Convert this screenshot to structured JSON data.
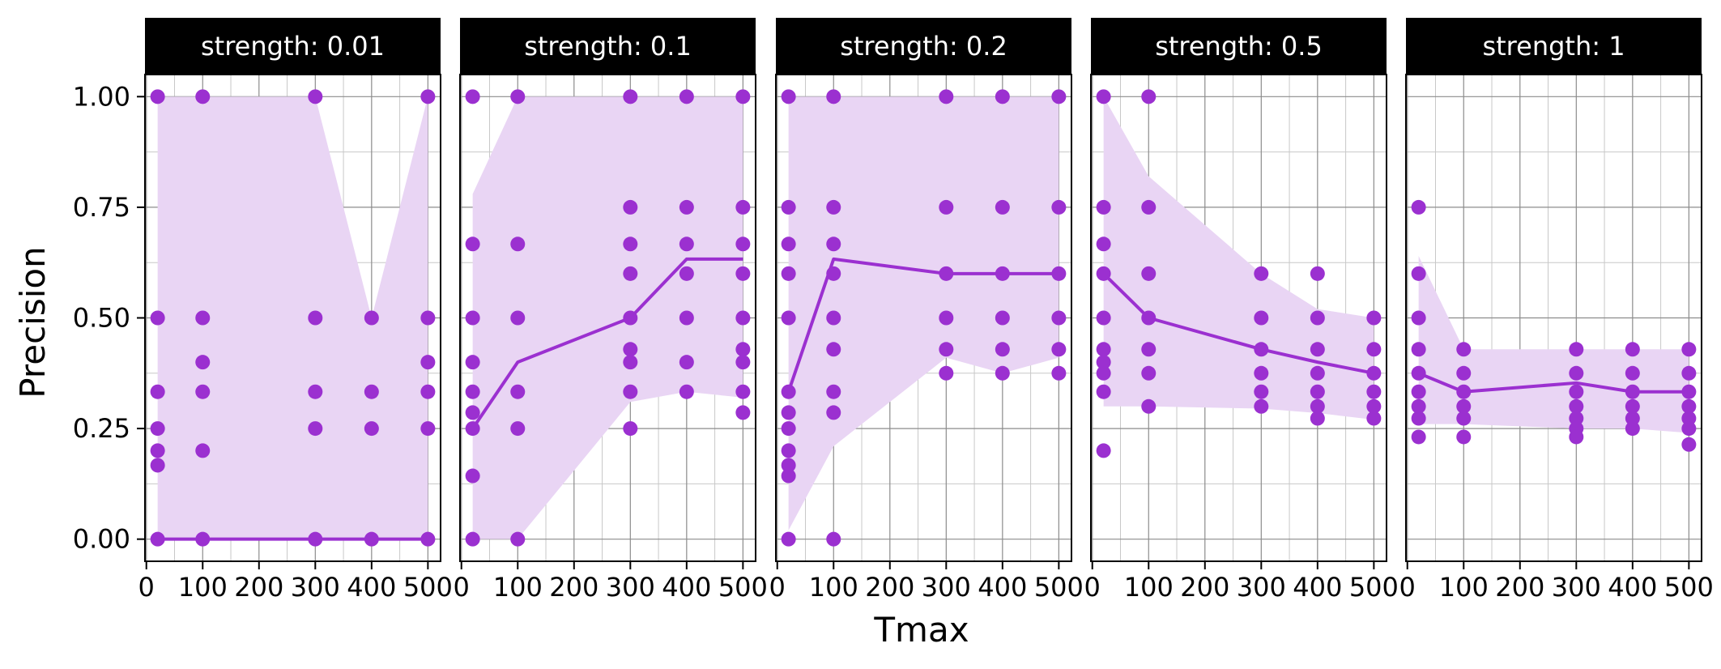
{
  "chart_data": {
    "type": "scatter",
    "xlabel": "Tmax",
    "ylabel": "Precision",
    "xlim": [
      -2.5,
      522.5
    ],
    "ylim": [
      -0.05,
      1.05
    ],
    "x_ticks": [
      0,
      100,
      200,
      300,
      400,
      500
    ],
    "x_tick_labels": [
      "0",
      "100",
      "200",
      "300",
      "400",
      "500"
    ],
    "y_ticks": [
      0,
      0.25,
      0.5,
      0.75,
      1
    ],
    "y_tick_labels": [
      "0.00",
      "0.25",
      "0.50",
      "0.75",
      "1.00"
    ],
    "grid": true,
    "colors": {
      "points": "#9b30d0",
      "line": "#9b30d0",
      "ribbon": "#e9d5f4",
      "strip_bg": "#000000",
      "strip_text": "#ffffff",
      "grid_major": "#8c8c8c",
      "grid_minor": "#c8c8c8"
    },
    "panels": [
      {
        "strip": "strength: 0.01",
        "points": [
          [
            20,
            1
          ],
          [
            20,
            0.5
          ],
          [
            20,
            0.333
          ],
          [
            20,
            0.25
          ],
          [
            20,
            0.2
          ],
          [
            20,
            0.167
          ],
          [
            20,
            0
          ],
          [
            100,
            1
          ],
          [
            100,
            0.5
          ],
          [
            100,
            0.4
          ],
          [
            100,
            0.333
          ],
          [
            100,
            0.2
          ],
          [
            100,
            0
          ],
          [
            300,
            1
          ],
          [
            300,
            0.5
          ],
          [
            300,
            0.333
          ],
          [
            300,
            0.25
          ],
          [
            300,
            0
          ],
          [
            400,
            0.5
          ],
          [
            400,
            0.333
          ],
          [
            400,
            0.25
          ],
          [
            400,
            0
          ],
          [
            500,
            1
          ],
          [
            500,
            0.5
          ],
          [
            500,
            0.4
          ],
          [
            500,
            0.333
          ],
          [
            500,
            0.25
          ],
          [
            500,
            0
          ]
        ],
        "line": [
          [
            20,
            0
          ],
          [
            100,
            0
          ],
          [
            300,
            0
          ],
          [
            400,
            0
          ],
          [
            500,
            0
          ]
        ],
        "ribbon_lower": [
          [
            20,
            0
          ],
          [
            100,
            0
          ],
          [
            300,
            0
          ],
          [
            400,
            0
          ],
          [
            500,
            0
          ]
        ],
        "ribbon_upper": [
          [
            20,
            1
          ],
          [
            100,
            1
          ],
          [
            300,
            1
          ],
          [
            400,
            0.5
          ],
          [
            500,
            1
          ]
        ]
      },
      {
        "strip": "strength: 0.1",
        "points": [
          [
            20,
            1
          ],
          [
            20,
            0.667
          ],
          [
            20,
            0.5
          ],
          [
            20,
            0.4
          ],
          [
            20,
            0.333
          ],
          [
            20,
            0.286
          ],
          [
            20,
            0.25
          ],
          [
            20,
            0.143
          ],
          [
            20,
            0
          ],
          [
            100,
            1
          ],
          [
            100,
            0.667
          ],
          [
            100,
            0.5
          ],
          [
            100,
            0.333
          ],
          [
            100,
            0.25
          ],
          [
            100,
            0
          ],
          [
            300,
            1
          ],
          [
            300,
            0.75
          ],
          [
            300,
            0.667
          ],
          [
            300,
            0.6
          ],
          [
            300,
            0.5
          ],
          [
            300,
            0.429
          ],
          [
            300,
            0.4
          ],
          [
            300,
            0.333
          ],
          [
            300,
            0.25
          ],
          [
            400,
            1
          ],
          [
            400,
            0.75
          ],
          [
            400,
            0.667
          ],
          [
            400,
            0.6
          ],
          [
            400,
            0.5
          ],
          [
            400,
            0.4
          ],
          [
            400,
            0.333
          ],
          [
            500,
            1
          ],
          [
            500,
            0.75
          ],
          [
            500,
            0.667
          ],
          [
            500,
            0.6
          ],
          [
            500,
            0.5
          ],
          [
            500,
            0.429
          ],
          [
            500,
            0.4
          ],
          [
            500,
            0.333
          ],
          [
            500,
            0.286
          ]
        ],
        "line": [
          [
            20,
            0.25
          ],
          [
            100,
            0.4
          ],
          [
            300,
            0.5
          ],
          [
            400,
            0.633
          ],
          [
            500,
            0.633
          ]
        ],
        "ribbon_lower": [
          [
            20,
            0
          ],
          [
            100,
            0
          ],
          [
            300,
            0.31
          ],
          [
            400,
            0.333
          ],
          [
            500,
            0.32
          ]
        ],
        "ribbon_upper": [
          [
            20,
            0.78
          ],
          [
            100,
            1
          ],
          [
            300,
            1
          ],
          [
            400,
            1
          ],
          [
            500,
            1
          ]
        ]
      },
      {
        "strip": "strength: 0.2",
        "points": [
          [
            20,
            1
          ],
          [
            20,
            0.75
          ],
          [
            20,
            0.667
          ],
          [
            20,
            0.6
          ],
          [
            20,
            0.5
          ],
          [
            20,
            0.333
          ],
          [
            20,
            0.286
          ],
          [
            20,
            0.25
          ],
          [
            20,
            0.2
          ],
          [
            20,
            0.167
          ],
          [
            20,
            0.143
          ],
          [
            20,
            0
          ],
          [
            100,
            1
          ],
          [
            100,
            0.75
          ],
          [
            100,
            0.667
          ],
          [
            100,
            0.6
          ],
          [
            100,
            0.5
          ],
          [
            100,
            0.429
          ],
          [
            100,
            0.333
          ],
          [
            100,
            0.286
          ],
          [
            100,
            0
          ],
          [
            300,
            1
          ],
          [
            300,
            0.75
          ],
          [
            300,
            0.6
          ],
          [
            300,
            0.5
          ],
          [
            300,
            0.429
          ],
          [
            300,
            0.375
          ],
          [
            400,
            1
          ],
          [
            400,
            0.75
          ],
          [
            400,
            0.6
          ],
          [
            400,
            0.5
          ],
          [
            400,
            0.429
          ],
          [
            400,
            0.375
          ],
          [
            500,
            1
          ],
          [
            500,
            0.75
          ],
          [
            500,
            0.6
          ],
          [
            500,
            0.5
          ],
          [
            500,
            0.429
          ],
          [
            500,
            0.375
          ]
        ],
        "line": [
          [
            20,
            0.333
          ],
          [
            100,
            0.633
          ],
          [
            300,
            0.6
          ],
          [
            400,
            0.6
          ],
          [
            500,
            0.6
          ]
        ],
        "ribbon_lower": [
          [
            20,
            0.02
          ],
          [
            100,
            0.21
          ],
          [
            300,
            0.41
          ],
          [
            400,
            0.375
          ],
          [
            500,
            0.41
          ]
        ],
        "ribbon_upper": [
          [
            20,
            1
          ],
          [
            100,
            1
          ],
          [
            300,
            1
          ],
          [
            400,
            1
          ],
          [
            500,
            1
          ]
        ]
      },
      {
        "strip": "strength: 0.5",
        "points": [
          [
            20,
            1
          ],
          [
            20,
            0.75
          ],
          [
            20,
            0.667
          ],
          [
            20,
            0.6
          ],
          [
            20,
            0.5
          ],
          [
            20,
            0.429
          ],
          [
            20,
            0.4
          ],
          [
            20,
            0.375
          ],
          [
            20,
            0.333
          ],
          [
            20,
            0.2
          ],
          [
            100,
            1
          ],
          [
            100,
            0.75
          ],
          [
            100,
            0.6
          ],
          [
            100,
            0.5
          ],
          [
            100,
            0.429
          ],
          [
            100,
            0.375
          ],
          [
            100,
            0.3
          ],
          [
            300,
            0.6
          ],
          [
            300,
            0.5
          ],
          [
            300,
            0.429
          ],
          [
            300,
            0.375
          ],
          [
            300,
            0.333
          ],
          [
            300,
            0.3
          ],
          [
            400,
            0.6
          ],
          [
            400,
            0.5
          ],
          [
            400,
            0.429
          ],
          [
            400,
            0.375
          ],
          [
            400,
            0.333
          ],
          [
            400,
            0.3
          ],
          [
            400,
            0.273
          ],
          [
            500,
            0.5
          ],
          [
            500,
            0.429
          ],
          [
            500,
            0.375
          ],
          [
            500,
            0.333
          ],
          [
            500,
            0.3
          ],
          [
            500,
            0.273
          ]
        ],
        "line": [
          [
            20,
            0.6
          ],
          [
            100,
            0.5
          ],
          [
            300,
            0.429
          ],
          [
            400,
            0.4
          ],
          [
            500,
            0.375
          ]
        ],
        "ribbon_lower": [
          [
            20,
            0.3
          ],
          [
            100,
            0.3
          ],
          [
            300,
            0.295
          ],
          [
            400,
            0.285
          ],
          [
            500,
            0.27
          ]
        ],
        "ribbon_upper": [
          [
            20,
            1
          ],
          [
            100,
            0.82
          ],
          [
            300,
            0.6
          ],
          [
            400,
            0.52
          ],
          [
            500,
            0.5
          ]
        ]
      },
      {
        "strip": "strength: 1",
        "points": [
          [
            20,
            0.75
          ],
          [
            20,
            0.6
          ],
          [
            20,
            0.5
          ],
          [
            20,
            0.429
          ],
          [
            20,
            0.375
          ],
          [
            20,
            0.333
          ],
          [
            20,
            0.3
          ],
          [
            20,
            0.273
          ],
          [
            20,
            0.231
          ],
          [
            100,
            0.429
          ],
          [
            100,
            0.375
          ],
          [
            100,
            0.333
          ],
          [
            100,
            0.3
          ],
          [
            100,
            0.273
          ],
          [
            100,
            0.231
          ],
          [
            300,
            0.429
          ],
          [
            300,
            0.375
          ],
          [
            300,
            0.333
          ],
          [
            300,
            0.3
          ],
          [
            300,
            0.273
          ],
          [
            300,
            0.25
          ],
          [
            300,
            0.231
          ],
          [
            400,
            0.429
          ],
          [
            400,
            0.375
          ],
          [
            400,
            0.333
          ],
          [
            400,
            0.3
          ],
          [
            400,
            0.273
          ],
          [
            400,
            0.25
          ],
          [
            500,
            0.429
          ],
          [
            500,
            0.375
          ],
          [
            500,
            0.333
          ],
          [
            500,
            0.3
          ],
          [
            500,
            0.273
          ],
          [
            500,
            0.25
          ],
          [
            500,
            0.214
          ]
        ],
        "line": [
          [
            20,
            0.375
          ],
          [
            100,
            0.333
          ],
          [
            300,
            0.353
          ],
          [
            400,
            0.333
          ],
          [
            500,
            0.333
          ]
        ],
        "ribbon_lower": [
          [
            20,
            0.26
          ],
          [
            100,
            0.26
          ],
          [
            300,
            0.25
          ],
          [
            400,
            0.25
          ],
          [
            500,
            0.24
          ]
        ],
        "ribbon_upper": [
          [
            20,
            0.64
          ],
          [
            100,
            0.429
          ],
          [
            300,
            0.429
          ],
          [
            400,
            0.429
          ],
          [
            500,
            0.429
          ]
        ]
      }
    ]
  }
}
